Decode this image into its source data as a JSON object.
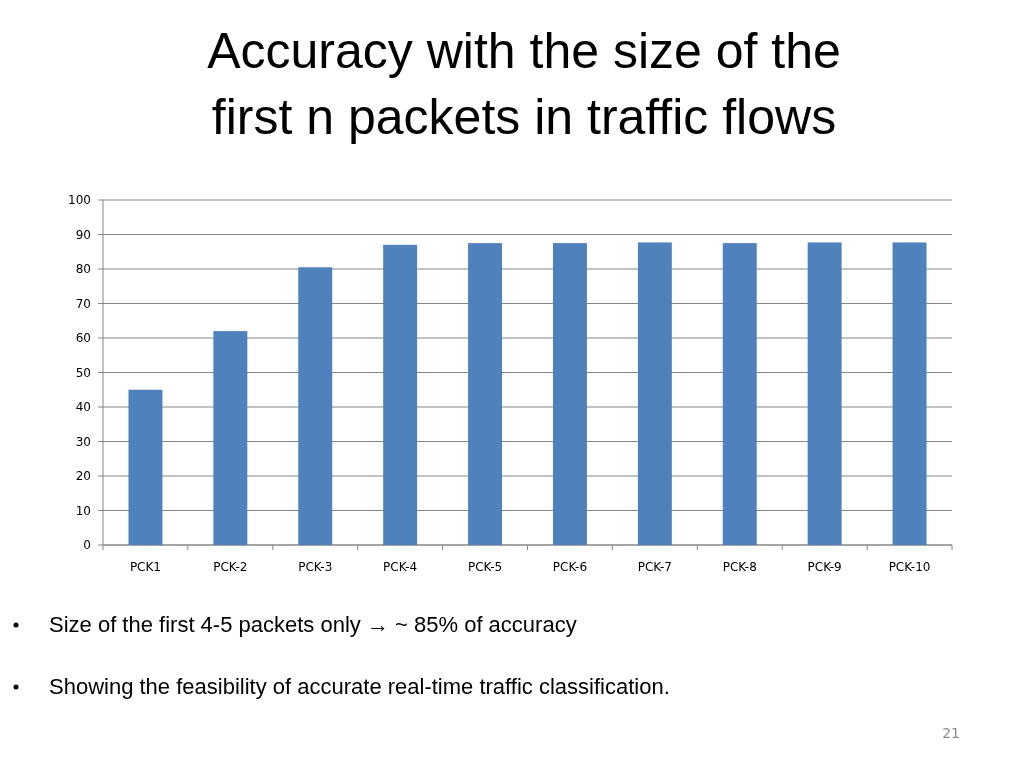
{
  "chart_data": {
    "type": "bar",
    "title": "Accuracy with the size of the first n packets in traffic flows",
    "categories": [
      "PCK1",
      "PCK-2",
      "PCK-3",
      "PCK-4",
      "PCK-5",
      "PCK-6",
      "PCK-7",
      "PCK-8",
      "PCK-9",
      "PCK-10"
    ],
    "values": [
      45,
      62,
      80.5,
      87,
      87.5,
      87.5,
      87.7,
      87.5,
      87.7,
      87.7
    ],
    "color": "#4f81bd",
    "ylim": [
      0,
      100
    ],
    "yticks": [
      0,
      10,
      20,
      30,
      40,
      50,
      60,
      70,
      80,
      90,
      100
    ],
    "grid": "y",
    "annotations": [
      "Size of the first 4-5 packets only → ~ 85% of accuracy",
      "Showing the feasibility of  accurate real-time traffic classification.",
      "21"
    ]
  }
}
